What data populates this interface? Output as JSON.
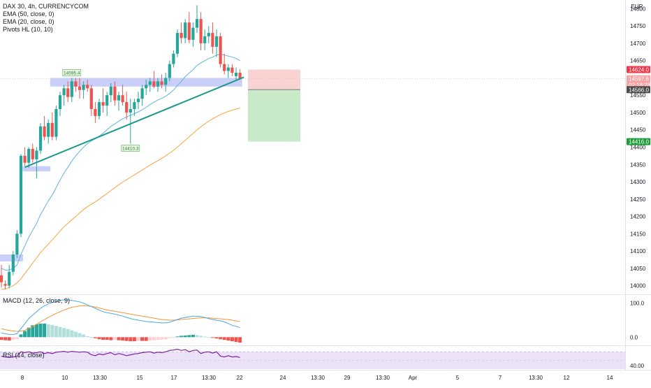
{
  "header": {
    "symbol_line": "DAX 30, 4h, CURRENCYCOM",
    "indicators": [
      "EMA (50, close, 0)",
      "EMA (20, close, 0)",
      "Pivots HL (10, 10)"
    ],
    "currency": "EUR"
  },
  "macd_title": "MACD (12, 26, close, 9)",
  "rsi_title": "RSI (14, close)",
  "colors": {
    "up": "#26a69a",
    "down": "#ef5350",
    "ema20": "#5fb4e0",
    "ema50": "#f7a541",
    "trendline": "#1a9a8a",
    "zone": "#b7bff7",
    "stop_zone": "#f9d2d2",
    "target_zone": "#c9eac9",
    "macd": "#4aa8e0",
    "signal": "#f7953a",
    "rsi": "#7b1fa2",
    "rsi_band": "#ece2f7"
  },
  "chart_data": {
    "type": "candlestick",
    "title": "DAX 30, 4h, CURRENCYCOM",
    "y_range": [
      13975,
      14825
    ],
    "y_ticks": [
      14800,
      14750,
      14700,
      14650,
      14600,
      14550,
      14500,
      14450,
      14400,
      14350,
      14300,
      14250,
      14200,
      14150,
      14100,
      14050,
      14000
    ],
    "x_ticks": [
      "8",
      "10",
      "13:30",
      "15",
      "17",
      "13:30",
      "22",
      "24",
      "13:30",
      "29",
      "13:30",
      "Apr",
      "5",
      "7",
      "13:30",
      "12",
      "14"
    ],
    "candles": [
      {
        "o": 14030,
        "h": 14060,
        "l": 13995,
        "c": 14010
      },
      {
        "o": 14005,
        "h": 14015,
        "l": 13990,
        "c": 14000
      },
      {
        "o": 14000,
        "h": 14060,
        "l": 13992,
        "c": 14040
      },
      {
        "o": 14040,
        "h": 14100,
        "l": 14030,
        "c": 14090
      },
      {
        "o": 14090,
        "h": 14160,
        "l": 14080,
        "c": 14150
      },
      {
        "o": 14150,
        "h": 14380,
        "l": 14140,
        "c": 14375
      },
      {
        "o": 14375,
        "h": 14400,
        "l": 14345,
        "c": 14355
      },
      {
        "o": 14355,
        "h": 14400,
        "l": 14340,
        "c": 14395
      },
      {
        "o": 14395,
        "h": 14410,
        "l": 14355,
        "c": 14365
      },
      {
        "o": 14365,
        "h": 14400,
        "l": 14310,
        "c": 14390
      },
      {
        "o": 14390,
        "h": 14470,
        "l": 14380,
        "c": 14460
      },
      {
        "o": 14460,
        "h": 14490,
        "l": 14420,
        "c": 14430
      },
      {
        "o": 14430,
        "h": 14480,
        "l": 14410,
        "c": 14470
      },
      {
        "o": 14470,
        "h": 14500,
        "l": 14420,
        "c": 14430
      },
      {
        "o": 14430,
        "h": 14520,
        "l": 14420,
        "c": 14510
      },
      {
        "o": 14510,
        "h": 14560,
        "l": 14490,
        "c": 14550
      },
      {
        "o": 14550,
        "h": 14580,
        "l": 14520,
        "c": 14570
      },
      {
        "o": 14570,
        "h": 14590,
        "l": 14530,
        "c": 14545
      },
      {
        "o": 14545,
        "h": 14600,
        "l": 14530,
        "c": 14590
      },
      {
        "o": 14590,
        "h": 14600,
        "l": 14560,
        "c": 14575
      },
      {
        "o": 14575,
        "h": 14600,
        "l": 14540,
        "c": 14565
      },
      {
        "o": 14565,
        "h": 14590,
        "l": 14540,
        "c": 14580
      },
      {
        "o": 14580,
        "h": 14595,
        "l": 14560,
        "c": 14570
      },
      {
        "o": 14570,
        "h": 14580,
        "l": 14490,
        "c": 14510
      },
      {
        "o": 14510,
        "h": 14530,
        "l": 14470,
        "c": 14490
      },
      {
        "o": 14490,
        "h": 14540,
        "l": 14480,
        "c": 14530
      },
      {
        "o": 14530,
        "h": 14570,
        "l": 14500,
        "c": 14520
      },
      {
        "o": 14520,
        "h": 14560,
        "l": 14490,
        "c": 14550
      },
      {
        "o": 14550,
        "h": 14585,
        "l": 14530,
        "c": 14575
      },
      {
        "o": 14575,
        "h": 14590,
        "l": 14520,
        "c": 14535
      },
      {
        "o": 14535,
        "h": 14560,
        "l": 14505,
        "c": 14550
      },
      {
        "o": 14550,
        "h": 14580,
        "l": 14520,
        "c": 14530
      },
      {
        "o": 14530,
        "h": 14560,
        "l": 14480,
        "c": 14500
      },
      {
        "o": 14500,
        "h": 14540,
        "l": 14410,
        "c": 14510
      },
      {
        "o": 14510,
        "h": 14540,
        "l": 14490,
        "c": 14530
      },
      {
        "o": 14530,
        "h": 14560,
        "l": 14510,
        "c": 14540
      },
      {
        "o": 14540,
        "h": 14580,
        "l": 14520,
        "c": 14570
      },
      {
        "o": 14570,
        "h": 14595,
        "l": 14550,
        "c": 14580
      },
      {
        "o": 14580,
        "h": 14600,
        "l": 14560,
        "c": 14590
      },
      {
        "o": 14590,
        "h": 14620,
        "l": 14570,
        "c": 14575
      },
      {
        "o": 14575,
        "h": 14600,
        "l": 14560,
        "c": 14590
      },
      {
        "o": 14590,
        "h": 14610,
        "l": 14570,
        "c": 14580
      },
      {
        "o": 14580,
        "h": 14615,
        "l": 14560,
        "c": 14600
      },
      {
        "o": 14600,
        "h": 14650,
        "l": 14590,
        "c": 14640
      },
      {
        "o": 14640,
        "h": 14680,
        "l": 14630,
        "c": 14670
      },
      {
        "o": 14670,
        "h": 14740,
        "l": 14660,
        "c": 14730
      },
      {
        "o": 14730,
        "h": 14760,
        "l": 14700,
        "c": 14715
      },
      {
        "o": 14715,
        "h": 14770,
        "l": 14700,
        "c": 14760
      },
      {
        "o": 14760,
        "h": 14790,
        "l": 14700,
        "c": 14710
      },
      {
        "o": 14710,
        "h": 14760,
        "l": 14690,
        "c": 14745
      },
      {
        "o": 14745,
        "h": 14810,
        "l": 14730,
        "c": 14770
      },
      {
        "o": 14770,
        "h": 14790,
        "l": 14680,
        "c": 14700
      },
      {
        "o": 14700,
        "h": 14740,
        "l": 14680,
        "c": 14720
      },
      {
        "o": 14720,
        "h": 14750,
        "l": 14700,
        "c": 14730
      },
      {
        "o": 14730,
        "h": 14760,
        "l": 14670,
        "c": 14690
      },
      {
        "o": 14690,
        "h": 14740,
        "l": 14660,
        "c": 14720
      },
      {
        "o": 14720,
        "h": 14730,
        "l": 14630,
        "c": 14640
      },
      {
        "o": 14640,
        "h": 14670,
        "l": 14610,
        "c": 14620
      },
      {
        "o": 14620,
        "h": 14640,
        "l": 14600,
        "c": 14630
      },
      {
        "o": 14630,
        "h": 14640,
        "l": 14605,
        "c": 14615
      },
      {
        "o": 14605,
        "h": 14630,
        "l": 14595,
        "c": 14615
      },
      {
        "o": 14615,
        "h": 14625,
        "l": 14595,
        "c": 14598
      }
    ],
    "ema20": [
      14050,
      14045,
      14045,
      14050,
      14060,
      14090,
      14115,
      14140,
      14160,
      14180,
      14205,
      14225,
      14245,
      14262,
      14283,
      14305,
      14325,
      14342,
      14360,
      14375,
      14388,
      14400,
      14410,
      14418,
      14424,
      14432,
      14440,
      14450,
      14460,
      14467,
      14475,
      14482,
      14487,
      14492,
      14497,
      14502,
      14508,
      14515,
      14523,
      14530,
      14536,
      14541,
      14547,
      14555,
      14565,
      14578,
      14590,
      14604,
      14614,
      14624,
      14636,
      14643,
      14650,
      14656,
      14660,
      14666,
      14668,
      14666,
      14663,
      14660,
      14656,
      14650
    ],
    "ema50": [
      13990,
      13990,
      13995,
      14000,
      14008,
      14020,
      14035,
      14050,
      14065,
      14080,
      14095,
      14108,
      14120,
      14132,
      14145,
      14158,
      14170,
      14180,
      14190,
      14200,
      14210,
      14220,
      14228,
      14235,
      14242,
      14250,
      14258,
      14266,
      14275,
      14283,
      14291,
      14299,
      14306,
      14313,
      14320,
      14327,
      14334,
      14341,
      14348,
      14355,
      14361,
      14368,
      14375,
      14383,
      14391,
      14400,
      14410,
      14420,
      14430,
      14440,
      14450,
      14459,
      14467,
      14475,
      14482,
      14488,
      14494,
      14499,
      14503,
      14507,
      14510,
      14513
    ],
    "pivot_labels": [
      {
        "text": "14595.4",
        "candle": 18,
        "price": 14600
      },
      {
        "text": "14410.3",
        "candle": 33,
        "price": 14410
      }
    ],
    "zones": [
      {
        "from_candle": 13,
        "to_candle": 61,
        "top": 14600,
        "bottom": 14575
      },
      {
        "from_candle": 6,
        "to_candle": 12,
        "top": 14345,
        "bottom": 14330
      },
      {
        "from_candle": 0,
        "to_candle": 5,
        "top": 14090,
        "bottom": 14070
      }
    ],
    "trendline": {
      "from_candle": 6,
      "from_price": 14342,
      "to_candle": 62,
      "to_price": 14602
    },
    "position": {
      "entry": 14566,
      "stop": 14624,
      "target": 14416
    },
    "price_labels": {
      "stop": "14624.0",
      "current": "14597.6",
      "countdown": "02:18:28",
      "entry": "14566.0",
      "target": "14416.0"
    },
    "macd": {
      "ticks": [
        "100.0",
        "0.0"
      ],
      "range": [
        -20,
        120
      ],
      "macd_line": [
        12,
        10,
        8,
        8,
        10,
        25,
        40,
        55,
        65,
        75,
        85,
        92,
        98,
        102,
        105,
        108,
        110,
        110,
        108,
        106,
        104,
        100,
        95,
        90,
        85,
        80,
        75,
        72,
        70,
        68,
        65,
        62,
        58,
        55,
        52,
        50,
        48,
        46,
        45,
        44,
        43,
        42,
        42,
        44,
        48,
        52,
        56,
        58,
        60,
        62,
        62,
        61,
        58,
        55,
        52,
        50,
        48,
        45,
        40,
        35,
        32,
        28
      ],
      "signal_line": [
        25,
        22,
        20,
        18,
        17,
        18,
        20,
        25,
        30,
        38,
        45,
        52,
        58,
        64,
        70,
        75,
        80,
        84,
        88,
        90,
        92,
        93,
        92,
        91,
        89,
        86,
        83,
        80,
        78,
        76,
        74,
        72,
        70,
        68,
        66,
        64,
        62,
        60,
        58,
        56,
        54,
        52,
        51,
        50,
        50,
        51,
        52,
        53,
        54,
        55,
        56,
        57,
        57,
        57,
        56,
        55,
        54,
        53,
        52,
        50,
        48,
        46
      ],
      "histogram": [
        -8,
        -9,
        -10,
        -8,
        -5,
        8,
        18,
        28,
        35,
        38,
        40,
        40,
        38,
        36,
        33,
        30,
        27,
        24,
        20,
        16,
        12,
        8,
        3,
        0,
        -3,
        -6,
        -8,
        -8,
        -9,
        -8,
        -9,
        -10,
        -11,
        -12,
        -12,
        -11,
        -11,
        -11,
        -10,
        -9,
        -8,
        -7,
        -6,
        -3,
        -1,
        2,
        4,
        5,
        6,
        7,
        6,
        4,
        2,
        0,
        -2,
        -4,
        -6,
        -8,
        -10,
        -12,
        -14,
        -16
      ]
    },
    "rsi": {
      "ticks": [
        "40.00"
      ],
      "range": [
        30,
        80
      ],
      "values": [
        60,
        58,
        57,
        58,
        60,
        70,
        68,
        70,
        67,
        68,
        70,
        66,
        68,
        66,
        69,
        70,
        71,
        69,
        71,
        70,
        69,
        70,
        69,
        63,
        61,
        65,
        63,
        66,
        68,
        63,
        66,
        64,
        61,
        63,
        65,
        66,
        68,
        69,
        70,
        67,
        69,
        68,
        70,
        73,
        74,
        76,
        73,
        75,
        70,
        73,
        74,
        66,
        69,
        70,
        67,
        70,
        60,
        58,
        61,
        58,
        59,
        57
      ]
    }
  }
}
